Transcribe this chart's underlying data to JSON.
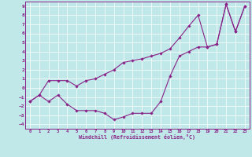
{
  "bg_color": "#c0e8e8",
  "line_color": "#882288",
  "xlim": [
    -0.5,
    23.5
  ],
  "ylim": [
    -4.5,
    9.5
  ],
  "xticks": [
    0,
    1,
    2,
    3,
    4,
    5,
    6,
    7,
    8,
    9,
    10,
    11,
    12,
    13,
    14,
    15,
    16,
    17,
    18,
    19,
    20,
    21,
    22,
    23
  ],
  "yticks": [
    -4,
    -3,
    -2,
    -1,
    0,
    1,
    2,
    3,
    4,
    5,
    6,
    7,
    8,
    9
  ],
  "xlabel": "Windchill (Refroidissement éolien,°C)",
  "line1_x": [
    0,
    1,
    2,
    3,
    4,
    5,
    6,
    7,
    8,
    9,
    10,
    11,
    12,
    13,
    14,
    15,
    16,
    17,
    18,
    19,
    20,
    21,
    22,
    23
  ],
  "line1_y": [
    -1.5,
    -0.8,
    -1.5,
    -0.8,
    -1.8,
    -2.5,
    -2.5,
    -2.5,
    -2.8,
    -3.5,
    -3.2,
    -2.8,
    -2.8,
    -2.8,
    -1.5,
    1.3,
    3.5,
    4.0,
    4.5,
    4.5,
    4.8,
    9.2,
    6.2,
    9.0
  ],
  "line2_x": [
    0,
    1,
    2,
    3,
    4,
    5,
    6,
    7,
    8,
    9,
    10,
    11,
    12,
    13,
    14,
    15,
    16,
    17,
    18,
    19,
    20,
    21,
    22,
    23
  ],
  "line2_y": [
    -1.5,
    -0.8,
    0.8,
    0.8,
    0.8,
    0.2,
    0.8,
    1.0,
    1.5,
    2.0,
    2.8,
    3.0,
    3.2,
    3.5,
    3.8,
    4.3,
    5.5,
    6.8,
    8.0,
    4.5,
    4.8,
    9.2,
    6.2,
    9.0
  ]
}
